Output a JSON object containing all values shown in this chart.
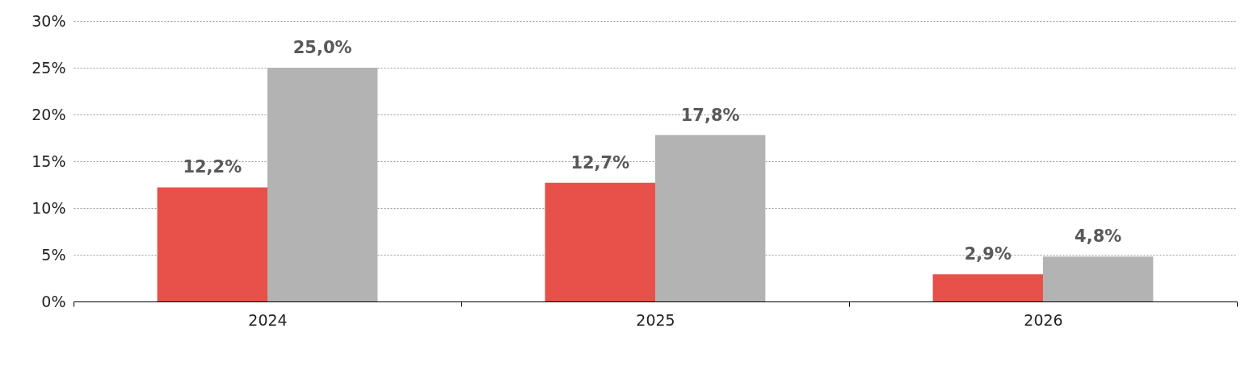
{
  "chart_data": {
    "type": "bar",
    "categories": [
      "2024",
      "2025",
      "2026"
    ],
    "series": [
      {
        "color": "#e8504a",
        "values": [
          12.2,
          12.7,
          2.9
        ],
        "value_labels": [
          "12,2%",
          "12,7%",
          "2,9%"
        ]
      },
      {
        "color": "#b3b3b3",
        "values": [
          25.0,
          17.8,
          4.8
        ],
        "value_labels": [
          "25,0%",
          "17,8%",
          "4,8%"
        ]
      }
    ],
    "ylim": [
      0,
      30
    ],
    "yticks": [
      {
        "value": 0,
        "label": "0%"
      },
      {
        "value": 5,
        "label": "5%"
      },
      {
        "value": 10,
        "label": "10%"
      },
      {
        "value": 15,
        "label": "15%"
      },
      {
        "value": 20,
        "label": "20%"
      },
      {
        "value": 25,
        "label": "25%"
      },
      {
        "value": 30,
        "label": "30%"
      }
    ],
    "grid": "y"
  }
}
